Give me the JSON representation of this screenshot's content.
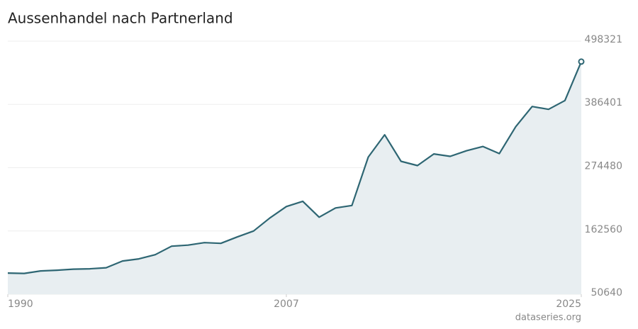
{
  "chart_data": {
    "type": "area",
    "title": "Aussenhandel nach Partnerland",
    "source": "dataseries.org",
    "x": [
      1990,
      1991,
      1992,
      1993,
      1994,
      1995,
      1996,
      1997,
      1998,
      1999,
      2000,
      2001,
      2002,
      2003,
      2004,
      2005,
      2006,
      2007,
      2008,
      2009,
      2010,
      2011,
      2012,
      2013,
      2014,
      2015,
      2016,
      2017,
      2018,
      2019,
      2020,
      2021,
      2022,
      2023,
      2024,
      2025
    ],
    "values": [
      88150,
      87530,
      91910,
      93160,
      95030,
      95660,
      97530,
      109410,
      113170,
      120670,
      135670,
      137550,
      141930,
      140680,
      151930,
      162560,
      185690,
      205700,
      215080,
      186940,
      203200,
      207580,
      293240,
      332630,
      285730,
      278230,
      298860,
      294490,
      304490,
      311990,
      299490,
      347000,
      382650,
      377650,
      393280,
      462060
    ],
    "color": "#2e6673",
    "fill": "#e8eef1",
    "xlim": [
      1990,
      2025
    ],
    "xticks": [
      1990,
      2007,
      2025
    ],
    "ylim": [
      50640,
      498321
    ],
    "yticks": [
      50640,
      162560,
      274480,
      386401,
      498321
    ],
    "grid": true
  }
}
